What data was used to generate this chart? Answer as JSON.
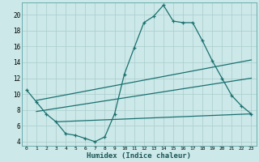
{
  "xlabel": "Humidex (Indice chaleur)",
  "bg_color": "#cce8e8",
  "grid_color": "#aacccc",
  "line_color": "#1a7070",
  "spine_color": "#6aadad",
  "xlim": [
    -0.5,
    23.5
  ],
  "ylim": [
    3.5,
    21.5
  ],
  "xticks": [
    0,
    1,
    2,
    3,
    4,
    5,
    6,
    7,
    8,
    9,
    10,
    11,
    12,
    13,
    14,
    15,
    16,
    17,
    18,
    19,
    20,
    21,
    22,
    23
  ],
  "yticks": [
    4,
    6,
    8,
    10,
    12,
    14,
    16,
    18,
    20
  ],
  "curve1_x": [
    0,
    1,
    2,
    3,
    4,
    5,
    6,
    7,
    8,
    9,
    10,
    11,
    12,
    13,
    14,
    15,
    16,
    17,
    18,
    19,
    20,
    21,
    22,
    23
  ],
  "curve1_y": [
    10.5,
    9.0,
    7.5,
    6.5,
    5.0,
    4.8,
    4.4,
    4.0,
    4.6,
    7.5,
    12.5,
    15.8,
    19.0,
    19.8,
    21.2,
    19.2,
    19.0,
    19.0,
    16.7,
    14.2,
    12.0,
    9.8,
    8.5,
    7.5
  ],
  "curve2_x": [
    1,
    23
  ],
  "curve2_y": [
    9.2,
    14.3
  ],
  "curve3_x": [
    1,
    23
  ],
  "curve3_y": [
    7.8,
    12.0
  ],
  "curve4_x": [
    3,
    23
  ],
  "curve4_y": [
    6.5,
    7.5
  ]
}
